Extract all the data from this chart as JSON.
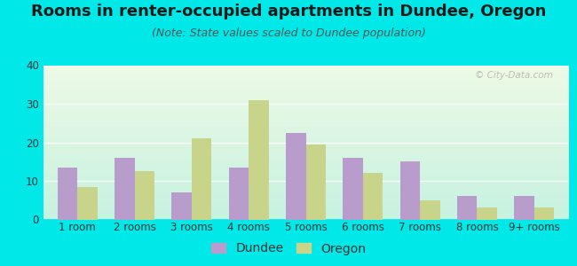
{
  "title": "Rooms in renter-occupied apartments in Dundee, Oregon",
  "subtitle": "(Note: State values scaled to Dundee population)",
  "categories": [
    "1 room",
    "2 rooms",
    "3 rooms",
    "4 rooms",
    "5 rooms",
    "6 rooms",
    "7 rooms",
    "8 rooms",
    "9+ rooms"
  ],
  "dundee_values": [
    13.5,
    16.0,
    7.0,
    13.5,
    22.5,
    16.0,
    15.0,
    6.0,
    6.0
  ],
  "oregon_values": [
    8.5,
    12.5,
    21.0,
    31.0,
    19.5,
    12.0,
    5.0,
    3.0,
    3.0
  ],
  "dundee_color": "#b89ccc",
  "oregon_color": "#c8d48a",
  "ylim": [
    0,
    40
  ],
  "yticks": [
    0,
    10,
    20,
    30,
    40
  ],
  "outer_bg": "#00e8e8",
  "title_fontsize": 13,
  "subtitle_fontsize": 9,
  "legend_fontsize": 10,
  "axis_fontsize": 8.5,
  "watermark_text": "© City-Data.com"
}
